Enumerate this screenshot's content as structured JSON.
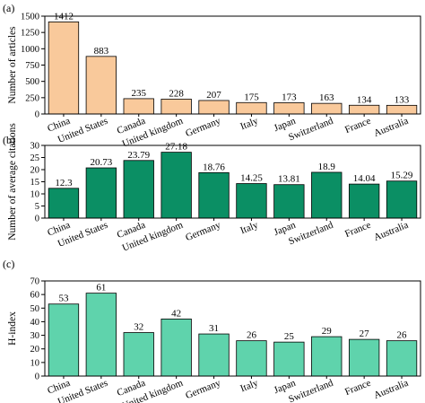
{
  "chart_data": [
    {
      "type": "bar",
      "panel_label": "(a)",
      "ylabel": "Number of articles",
      "categories": [
        "China",
        "United States",
        "Canada",
        "United kingdom",
        "Germany",
        "Italy",
        "Japan",
        "Switzerland",
        "France",
        "Australia"
      ],
      "values": [
        1412,
        883,
        235,
        228,
        207,
        175,
        173,
        163,
        134,
        133
      ],
      "value_labels": [
        "1412",
        "883",
        "235",
        "228",
        "207",
        "175",
        "173",
        "163",
        "134",
        "133"
      ],
      "ylim": [
        0,
        1500
      ],
      "yticks": [
        0,
        250,
        500,
        750,
        1000,
        1250,
        1500
      ],
      "color": "#f9c99b",
      "grid": false
    },
    {
      "type": "bar",
      "panel_label": "(b)",
      "ylabel": "Number of average citations",
      "categories": [
        "China",
        "United States",
        "Canada",
        "United kingdom",
        "Germany",
        "Italy",
        "Japan",
        "Switzerland",
        "France",
        "Australia"
      ],
      "values": [
        12.3,
        20.73,
        23.79,
        27.18,
        18.76,
        14.25,
        13.81,
        18.9,
        14.04,
        15.29
      ],
      "value_labels": [
        "12.3",
        "20.73",
        "23.79",
        "27.18",
        "18.76",
        "14.25",
        "13.81",
        "18.9",
        "14.04",
        "15.29"
      ],
      "ylim": [
        0,
        30
      ],
      "yticks": [
        0,
        5,
        10,
        15,
        20,
        25,
        30
      ],
      "color": "#0b8f64",
      "grid": false
    },
    {
      "type": "bar",
      "panel_label": "(c)",
      "ylabel": "H-index",
      "categories": [
        "China",
        "United States",
        "Canada",
        "United kingdom",
        "Germany",
        "Italy",
        "Japan",
        "Switzerland",
        "France",
        "Australia"
      ],
      "values": [
        53,
        61,
        32,
        42,
        31,
        26,
        25,
        29,
        27,
        26
      ],
      "value_labels": [
        "53",
        "61",
        "32",
        "42",
        "31",
        "26",
        "25",
        "29",
        "27",
        "26"
      ],
      "ylim": [
        0,
        70
      ],
      "yticks": [
        0,
        10,
        20,
        30,
        40,
        50,
        60,
        70
      ],
      "color": "#5fd3ac",
      "grid": false
    }
  ]
}
